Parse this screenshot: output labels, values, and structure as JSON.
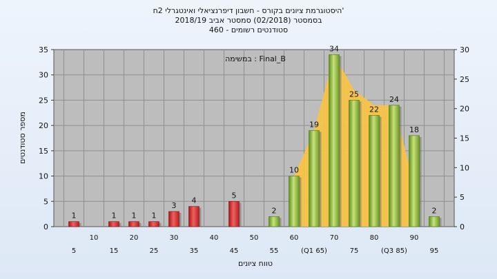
{
  "chart_data": {
    "type": "bar",
    "title_lines": [
      "'היסטוגרמת ציונים בקורס - חשבון דיפרנציאלי ואינטגרלי 2ח",
      "בסמסטר  (02/2018)  סמסטר אביב 2018/19",
      "סטודנטים רשומים - 460"
    ],
    "annotation": "במשימה : Final_B",
    "xlabel": "טווח ציונים",
    "ylabel": "מספר סטודנטים",
    "ylim": [
      0,
      35
    ],
    "y_ticks": [
      0,
      5,
      10,
      15,
      20,
      25,
      30,
      35
    ],
    "y2lim": [
      0,
      30
    ],
    "y2_ticks": [
      0,
      5,
      10,
      15,
      20,
      25,
      30
    ],
    "grid": true,
    "x_labels_row1": [
      "5",
      "15",
      "25",
      "35",
      "45",
      "55",
      "(Q1 65)",
      "75",
      "(Q3 85)",
      "95"
    ],
    "x_labels_row2": [
      "10",
      "20",
      "30",
      "40",
      "50",
      "60",
      "70",
      "80",
      "90"
    ],
    "bins": [
      "5",
      "10",
      "15",
      "20",
      "25",
      "30",
      "35",
      "40",
      "45",
      "50",
      "55",
      "60",
      "65",
      "70",
      "75",
      "80",
      "85",
      "90",
      "95"
    ],
    "values": [
      1,
      0,
      1,
      1,
      1,
      3,
      4,
      0,
      5,
      0,
      2,
      10,
      19,
      34,
      25,
      22,
      24,
      18,
      2
    ],
    "value_labels": [
      "1",
      "",
      "1",
      "1",
      "1",
      "3",
      "4",
      "",
      "5",
      "",
      "2",
      "10",
      "19",
      "34",
      "25",
      "22",
      "24",
      "18",
      "2"
    ],
    "fail_color": "#d42a2a",
    "pass_color": "#8fbf3a",
    "area_color": "#f7c348",
    "area_series": {
      "bins": [
        "60",
        "65",
        "70",
        "75",
        "80",
        "85",
        "90"
      ],
      "values": [
        10,
        19,
        34,
        27,
        24,
        24,
        8
      ]
    }
  }
}
